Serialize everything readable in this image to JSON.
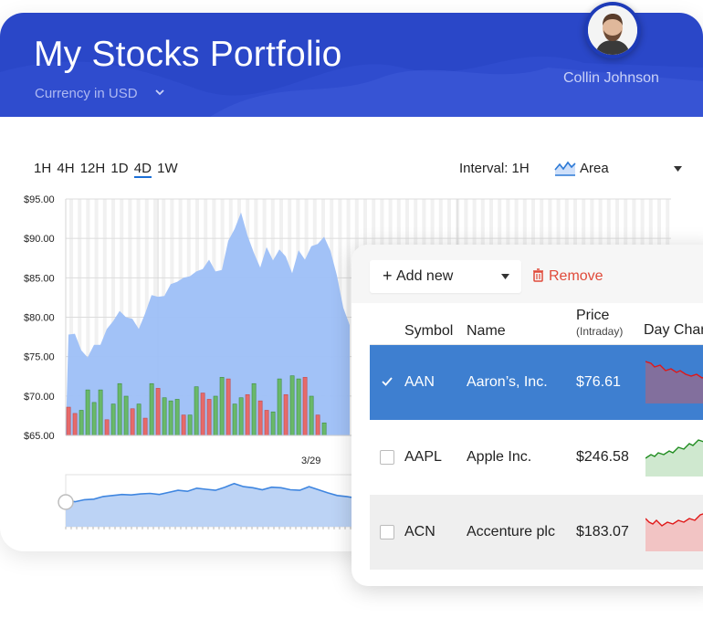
{
  "header": {
    "title": "My Stocks Portfolio",
    "currency_label": "Currency in USD",
    "user_name": "Collin Johnson",
    "bg_color": "#2a47c8"
  },
  "toolbar": {
    "ranges": [
      "1H",
      "4H",
      "12H",
      "1D",
      "4D",
      "1W"
    ],
    "active_range": "4D",
    "interval_label": "Interval: 1H",
    "chart_type_label": "Area"
  },
  "chart_data": {
    "type": "area",
    "y_tick_labels": [
      "$95.00",
      "$90.00",
      "$85.00",
      "$80.00",
      "$75.00",
      "$70.00",
      "$65.00"
    ],
    "ylim": [
      65,
      95
    ],
    "x_tick_labels": [
      "3/29"
    ],
    "price_series": [
      77.8,
      77.9,
      75.8,
      74.9,
      76.5,
      76.5,
      78.5,
      79.5,
      80.8,
      80.0,
      79.8,
      78.5,
      80.5,
      82.8,
      82.6,
      82.7,
      84.2,
      84.5,
      85.0,
      85.2,
      85.8,
      86.1,
      87.3,
      85.8,
      86.0,
      89.7,
      91.2,
      93.3,
      90.4,
      88.2,
      86.3,
      88.9,
      87.2,
      88.6,
      87.7,
      85.6,
      88.5,
      87.3,
      89.0,
      89.3,
      90.2,
      88.4,
      85.3,
      81.2,
      79.0
    ],
    "volume_bars": [
      {
        "value": 0.36,
        "up": false
      },
      {
        "value": 0.28,
        "up": false
      },
      {
        "value": 0.32,
        "up": true
      },
      {
        "value": 0.58,
        "up": true
      },
      {
        "value": 0.42,
        "up": true
      },
      {
        "value": 0.58,
        "up": true
      },
      {
        "value": 0.2,
        "up": false
      },
      {
        "value": 0.4,
        "up": true
      },
      {
        "value": 0.66,
        "up": true
      },
      {
        "value": 0.5,
        "up": true
      },
      {
        "value": 0.34,
        "up": false
      },
      {
        "value": 0.4,
        "up": true
      },
      {
        "value": 0.22,
        "up": false
      },
      {
        "value": 0.66,
        "up": true
      },
      {
        "value": 0.6,
        "up": false
      },
      {
        "value": 0.48,
        "up": true
      },
      {
        "value": 0.44,
        "up": true
      },
      {
        "value": 0.46,
        "up": true
      },
      {
        "value": 0.26,
        "up": false
      },
      {
        "value": 0.26,
        "up": true
      },
      {
        "value": 0.62,
        "up": true
      },
      {
        "value": 0.54,
        "up": false
      },
      {
        "value": 0.46,
        "up": false
      },
      {
        "value": 0.5,
        "up": true
      },
      {
        "value": 0.74,
        "up": true
      },
      {
        "value": 0.72,
        "up": false
      },
      {
        "value": 0.4,
        "up": true
      },
      {
        "value": 0.48,
        "up": true
      },
      {
        "value": 0.52,
        "up": false
      },
      {
        "value": 0.66,
        "up": true
      },
      {
        "value": 0.44,
        "up": false
      },
      {
        "value": 0.32,
        "up": false
      },
      {
        "value": 0.3,
        "up": true
      },
      {
        "value": 0.72,
        "up": true
      },
      {
        "value": 0.52,
        "up": false
      },
      {
        "value": 0.76,
        "up": true
      },
      {
        "value": 0.72,
        "up": true
      },
      {
        "value": 0.74,
        "up": false
      },
      {
        "value": 0.5,
        "up": true
      },
      {
        "value": 0.26,
        "up": false
      },
      {
        "value": 0.16,
        "up": true
      }
    ],
    "navigator_series": [
      0.5,
      0.48,
      0.52,
      0.53,
      0.58,
      0.6,
      0.62,
      0.61,
      0.63,
      0.64,
      0.62,
      0.66,
      0.7,
      0.68,
      0.74,
      0.72,
      0.7,
      0.76,
      0.83,
      0.77,
      0.75,
      0.71,
      0.76,
      0.75,
      0.71,
      0.7,
      0.77,
      0.71,
      0.65,
      0.6,
      0.58,
      0.55,
      0.52
    ],
    "colors": {
      "area": "#9dbff7",
      "line": "#3f86e0",
      "up_bar": "#6ab86a",
      "down_bar": "#e66a6a"
    }
  },
  "panel": {
    "add_label": "Add new",
    "remove_label": "Remove",
    "columns": {
      "symbol": "Symbol",
      "name": "Name",
      "price": "Price",
      "price_sub": "(Intraday)",
      "day_change": "Day Chan"
    },
    "rows": [
      {
        "symbol": "AAN",
        "name": "Aaron’s, Inc.",
        "price": "$76.61",
        "trend": "down",
        "selected": true
      },
      {
        "symbol": "AAPL",
        "name": "Apple Inc.",
        "price": "$246.58",
        "trend": "up",
        "selected": false
      },
      {
        "symbol": "ACN",
        "name": "Accenture plc",
        "price": "$183.07",
        "trend": "down",
        "selected": false
      }
    ]
  }
}
